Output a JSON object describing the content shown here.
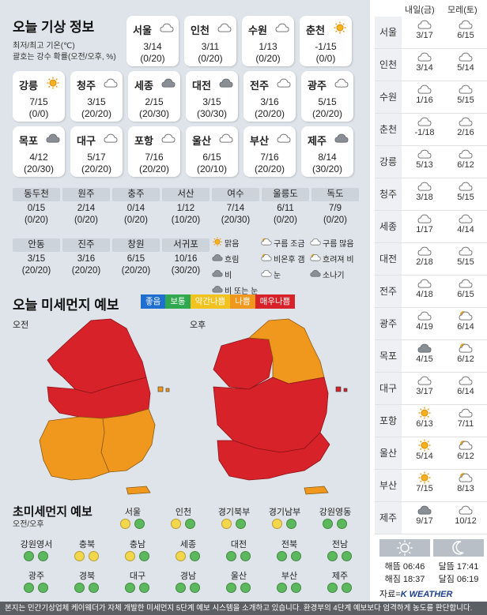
{
  "today": {
    "title": "오늘 기상 정보",
    "note1": "최저/최고 기온(℃)",
    "note2": "괄호는 강수 확률(오전/오후, %)",
    "cards": [
      {
        "city": "서울",
        "icon": "cloudy",
        "temp": "3/14",
        "pop": "(0/20)"
      },
      {
        "city": "인천",
        "icon": "cloudy",
        "temp": "3/11",
        "pop": "(0/20)"
      },
      {
        "city": "수원",
        "icon": "cloudy",
        "temp": "1/13",
        "pop": "(0/20)"
      },
      {
        "city": "춘천",
        "icon": "sunny",
        "temp": "-1/15",
        "pop": "(0/0)"
      },
      {
        "city": "강릉",
        "icon": "sunny",
        "temp": "7/15",
        "pop": "(0/0)"
      },
      {
        "city": "청주",
        "icon": "cloudy",
        "temp": "3/15",
        "pop": "(20/20)"
      },
      {
        "city": "세종",
        "icon": "overcast",
        "temp": "2/15",
        "pop": "(20/30)"
      },
      {
        "city": "대전",
        "icon": "overcast",
        "temp": "3/15",
        "pop": "(30/30)"
      },
      {
        "city": "전주",
        "icon": "cloudy",
        "temp": "3/16",
        "pop": "(20/20)"
      },
      {
        "city": "광주",
        "icon": "cloudy",
        "temp": "5/15",
        "pop": "(20/20)"
      },
      {
        "city": "목포",
        "icon": "overcast",
        "temp": "4/12",
        "pop": "(20/30)"
      },
      {
        "city": "대구",
        "icon": "cloudy",
        "temp": "5/17",
        "pop": "(20/20)"
      },
      {
        "city": "포항",
        "icon": "cloudy",
        "temp": "7/16",
        "pop": "(20/20)"
      },
      {
        "city": "울산",
        "icon": "cloudy",
        "temp": "6/15",
        "pop": "(20/10)"
      },
      {
        "city": "부산",
        "icon": "cloudy",
        "temp": "7/16",
        "pop": "(20/20)"
      },
      {
        "city": "제주",
        "icon": "overcast",
        "temp": "8/14",
        "pop": "(30/20)"
      }
    ],
    "small_row1": [
      {
        "city": "동두천",
        "temp": "0/15",
        "pop": "(0/20)"
      },
      {
        "city": "원주",
        "temp": "2/14",
        "pop": "(0/20)"
      },
      {
        "city": "충주",
        "temp": "0/14",
        "pop": "(0/20)"
      },
      {
        "city": "서산",
        "temp": "1/12",
        "pop": "(10/20)"
      },
      {
        "city": "여수",
        "temp": "7/14",
        "pop": "(20/30)"
      },
      {
        "city": "울릉도",
        "temp": "6/11",
        "pop": "(0/20)"
      },
      {
        "city": "독도",
        "temp": "7/9",
        "pop": "(0/20)"
      }
    ],
    "small_row2": [
      {
        "city": "안동",
        "temp": "3/15",
        "pop": "(20/20)"
      },
      {
        "city": "진주",
        "temp": "3/16",
        "pop": "(20/20)"
      },
      {
        "city": "창원",
        "temp": "6/15",
        "pop": "(20/20)"
      },
      {
        "city": "서귀포",
        "temp": "10/16",
        "pop": "(30/20)"
      }
    ],
    "weather_legend": [
      "맑음",
      "구름 조금",
      "구름 많음",
      "흐림",
      "비온후 갬",
      "흐려져 비",
      "비",
      "눈",
      "소나기",
      "비 또는 눈"
    ]
  },
  "dust": {
    "title": "오늘 미세먼지 예보",
    "am": "오전",
    "pm": "오후",
    "scale": [
      {
        "label": "좋음",
        "color": "#1f6fd0"
      },
      {
        "label": "보통",
        "color": "#2fa84f"
      },
      {
        "label": "약간나쁨",
        "color": "#f2c21f"
      },
      {
        "label": "나쁨",
        "color": "#f0981e"
      },
      {
        "label": "매우나쁨",
        "color": "#d7222a"
      }
    ]
  },
  "ultrafine": {
    "title": "초미세먼지 예보",
    "sub": "오전/오후",
    "regions": [
      {
        "name": "서울",
        "am": "yellow",
        "pm": "green"
      },
      {
        "name": "인천",
        "am": "yellow",
        "pm": "green"
      },
      {
        "name": "경기북부",
        "am": "yellow",
        "pm": "green"
      },
      {
        "name": "경기남부",
        "am": "yellow",
        "pm": "green"
      },
      {
        "name": "강원영동",
        "am": "green",
        "pm": "green"
      },
      {
        "name": "강원영서",
        "am": "green",
        "pm": "green"
      },
      {
        "name": "충북",
        "am": "yellow",
        "pm": "yellow"
      },
      {
        "name": "충남",
        "am": "yellow",
        "pm": "green"
      },
      {
        "name": "세종",
        "am": "yellow",
        "pm": "green"
      },
      {
        "name": "대전",
        "am": "green",
        "pm": "green"
      },
      {
        "name": "전북",
        "am": "green",
        "pm": "green"
      },
      {
        "name": "전남",
        "am": "green",
        "pm": "green"
      },
      {
        "name": "광주",
        "am": "green",
        "pm": "green"
      },
      {
        "name": "경북",
        "am": "green",
        "pm": "green"
      },
      {
        "name": "대구",
        "am": "green",
        "pm": "green"
      },
      {
        "name": "경남",
        "am": "green",
        "pm": "green"
      },
      {
        "name": "울산",
        "am": "green",
        "pm": "green"
      },
      {
        "name": "부산",
        "am": "green",
        "pm": "green"
      },
      {
        "name": "제주",
        "am": "green",
        "pm": "green"
      }
    ]
  },
  "forecast": {
    "day1": "내일(금)",
    "day2": "모레(토)",
    "rows": [
      {
        "city": "서울",
        "d1": {
          "icon": "cloudy",
          "temp": "3/17"
        },
        "d2": {
          "icon": "cloudy",
          "temp": "6/15"
        }
      },
      {
        "city": "인천",
        "d1": {
          "icon": "cloudy",
          "temp": "3/14"
        },
        "d2": {
          "icon": "cloudy",
          "temp": "5/14"
        }
      },
      {
        "city": "수원",
        "d1": {
          "icon": "cloudy",
          "temp": "1/16"
        },
        "d2": {
          "icon": "cloudy",
          "temp": "5/15"
        }
      },
      {
        "city": "춘천",
        "d1": {
          "icon": "cloudy",
          "temp": "-1/18"
        },
        "d2": {
          "icon": "cloudy",
          "temp": "2/16"
        }
      },
      {
        "city": "강릉",
        "d1": {
          "icon": "cloudy",
          "temp": "5/13"
        },
        "d2": {
          "icon": "cloudy",
          "temp": "6/12"
        }
      },
      {
        "city": "청주",
        "d1": {
          "icon": "cloudy",
          "temp": "3/18"
        },
        "d2": {
          "icon": "cloudy",
          "temp": "5/15"
        }
      },
      {
        "city": "세종",
        "d1": {
          "icon": "cloudy",
          "temp": "1/17"
        },
        "d2": {
          "icon": "cloudy",
          "temp": "4/14"
        }
      },
      {
        "city": "대전",
        "d1": {
          "icon": "cloudy",
          "temp": "2/18"
        },
        "d2": {
          "icon": "cloudy",
          "temp": "5/15"
        }
      },
      {
        "city": "전주",
        "d1": {
          "icon": "cloudy",
          "temp": "4/18"
        },
        "d2": {
          "icon": "cloudy",
          "temp": "6/15"
        }
      },
      {
        "city": "광주",
        "d1": {
          "icon": "cloudy",
          "temp": "4/19"
        },
        "d2": {
          "icon": "partly",
          "temp": "6/14"
        }
      },
      {
        "city": "목포",
        "d1": {
          "icon": "overcast",
          "temp": "4/15"
        },
        "d2": {
          "icon": "partly",
          "temp": "6/12"
        }
      },
      {
        "city": "대구",
        "d1": {
          "icon": "cloudy",
          "temp": "3/17"
        },
        "d2": {
          "icon": "cloudy",
          "temp": "6/14"
        }
      },
      {
        "city": "포항",
        "d1": {
          "icon": "sunny",
          "temp": "6/13"
        },
        "d2": {
          "icon": "cloudy",
          "temp": "7/11"
        }
      },
      {
        "city": "울산",
        "d1": {
          "icon": "sunny",
          "temp": "5/14"
        },
        "d2": {
          "icon": "partly",
          "temp": "6/12"
        }
      },
      {
        "city": "부산",
        "d1": {
          "icon": "sunny",
          "temp": "7/15"
        },
        "d2": {
          "icon": "partly",
          "temp": "8/13"
        }
      },
      {
        "city": "제주",
        "d1": {
          "icon": "overcast",
          "temp": "9/17"
        },
        "d2": {
          "icon": "cloudy",
          "temp": "10/12"
        }
      }
    ],
    "sunrise": "해뜸 06:46",
    "sunset": "해짐 18:37",
    "moonrise": "달뜸 17:41",
    "moonset": "달짐 06:19",
    "source_label": "자료=",
    "source_brand": "K WEATHER"
  },
  "footer": "본지는 민간기상업체 케이웨더가 자체 개발한 미세먼지 5단계 예보 시스템을 소개하고 있습니다. 환경부의 4단계 예보보다 엄격하게 농도를 판단합니다."
}
